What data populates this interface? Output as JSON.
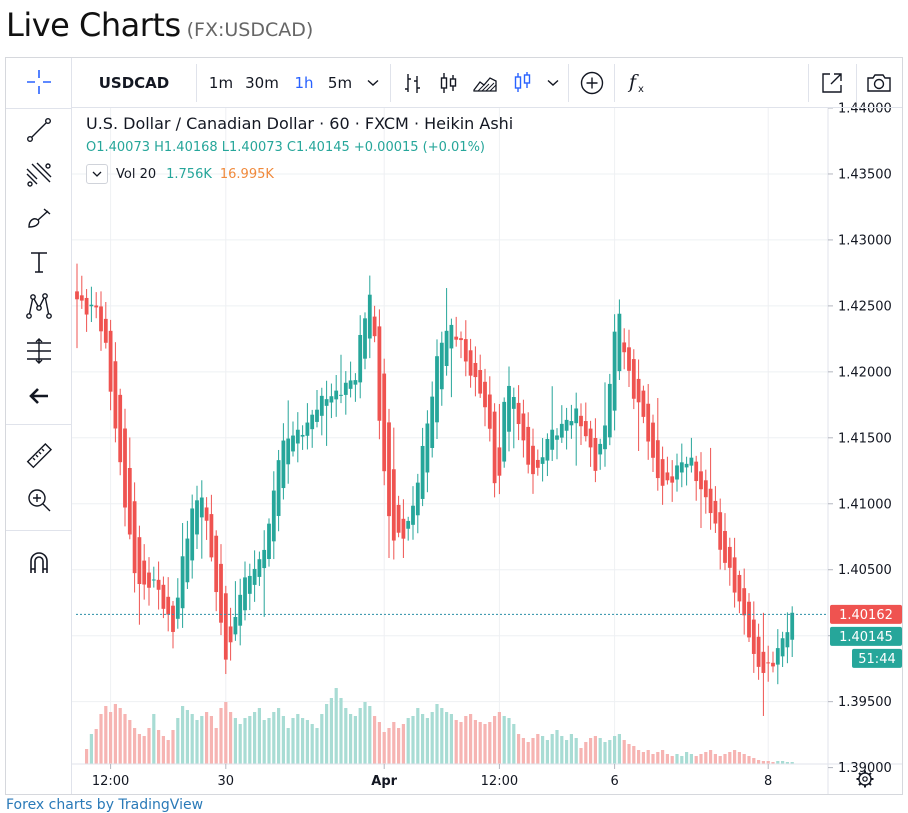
{
  "page": {
    "title": "Live Charts",
    "symbol_tag": "(FX:USDCAD)",
    "credit": "Forex charts by TradingView"
  },
  "toolbar": {
    "symbol": "USDCAD",
    "intervals": [
      "1m",
      "30m",
      "1h",
      "5m"
    ],
    "active_interval": "1h",
    "icons": [
      "interval-dropdown-icon",
      "bars-style-icon",
      "candles-style-icon",
      "area-style-icon",
      "heikin-ashi-style-icon",
      "chart-style-dropdown-icon",
      "compare-add-icon",
      "indicators-fx-icon",
      "fullscreen-icon",
      "snapshot-camera-icon"
    ]
  },
  "sidebar": {
    "tools": [
      "crosshair-icon",
      "trend-line-icon",
      "fib-retracement-icon",
      "brush-icon",
      "text-icon",
      "pattern-icon",
      "prediction-measure-icon",
      "back-arrow-icon",
      "ruler-icon",
      "zoom-in-icon",
      "magnet-icon"
    ]
  },
  "legend": {
    "title": "U.S. Dollar / Canadian Dollar · 60 · FXCM · Heikin Ashi",
    "ohlc_text": "O1.40073  H1.40168  L1.40073  C1.40145  +0.00015 (+0.01%)",
    "vol_label": "Vol 20",
    "vol_value": "1.756K",
    "vol_ma": "16.995K"
  },
  "colors": {
    "up": "#26a69a",
    "down": "#ef5350",
    "vol_up": "#a8dcd4",
    "vol_down": "#f6b4b2",
    "grid": "#eef0f3",
    "price_line": "#2a8fa6",
    "accent": "#2962ff",
    "ma_text": "#f08a3c"
  },
  "chart_data": {
    "type": "candlestick",
    "style": "Heikin Ashi",
    "interval": "60",
    "ylim": [
      1.388,
      1.44
    ],
    "y_ticks": [
      "1.44000",
      "1.43500",
      "1.43000",
      "1.42500",
      "1.42000",
      "1.41500",
      "1.41000",
      "1.40500",
      "1.40000",
      "1.39500",
      "1.39000"
    ],
    "x_ticks": [
      {
        "label": "12:00",
        "index": 7
      },
      {
        "label": "30",
        "index": 31
      },
      {
        "label": "Apr",
        "index": 64
      },
      {
        "label": "12:00",
        "index": 88
      },
      {
        "label": "6",
        "index": 112
      },
      {
        "label": "8",
        "index": 144
      }
    ],
    "grid": true,
    "price_markers": [
      {
        "label": "1.40162",
        "value": 1.40162,
        "color": "#ef5350"
      },
      {
        "label": "1.40145",
        "value": 1.40145,
        "color": "#26a69a"
      },
      {
        "label": "51:44",
        "color": "#26a69a"
      }
    ],
    "close_keyframes": [
      [
        0,
        1.4255
      ],
      [
        2,
        1.4245
      ],
      [
        4,
        1.425
      ],
      [
        6,
        1.422
      ],
      [
        8,
        1.4155
      ],
      [
        10,
        1.41
      ],
      [
        12,
        1.405
      ],
      [
        14,
        1.4035
      ],
      [
        16,
        1.404
      ],
      [
        18,
        1.4025
      ],
      [
        20,
        1.4005
      ],
      [
        22,
        1.4055
      ],
      [
        24,
        1.4095
      ],
      [
        26,
        1.411
      ],
      [
        28,
        1.406
      ],
      [
        30,
        1.4005
      ],
      [
        31,
        1.3985
      ],
      [
        32,
        1.3995
      ],
      [
        34,
        1.4035
      ],
      [
        36,
        1.4045
      ],
      [
        38,
        1.4055
      ],
      [
        40,
        1.4085
      ],
      [
        42,
        1.4135
      ],
      [
        44,
        1.415
      ],
      [
        46,
        1.4155
      ],
      [
        48,
        1.416
      ],
      [
        50,
        1.4172
      ],
      [
        52,
        1.4182
      ],
      [
        54,
        1.4185
      ],
      [
        56,
        1.4188
      ],
      [
        58,
        1.4195
      ],
      [
        59,
        1.4225
      ],
      [
        60,
        1.4245
      ],
      [
        61,
        1.426
      ],
      [
        62,
        1.4225
      ],
      [
        63,
        1.4165
      ],
      [
        64,
        1.412
      ],
      [
        65,
        1.409
      ],
      [
        66,
        1.4075
      ],
      [
        68,
        1.4078
      ],
      [
        70,
        1.4095
      ],
      [
        72,
        1.414
      ],
      [
        74,
        1.4185
      ],
      [
        75,
        1.421
      ],
      [
        76,
        1.4225
      ],
      [
        78,
        1.4232
      ],
      [
        80,
        1.4222
      ],
      [
        82,
        1.42
      ],
      [
        84,
        1.4185
      ],
      [
        86,
        1.4155
      ],
      [
        87,
        1.412
      ],
      [
        88,
        1.412
      ],
      [
        89,
        1.418
      ],
      [
        90,
        1.419
      ],
      [
        92,
        1.4162
      ],
      [
        94,
        1.413
      ],
      [
        96,
        1.4125
      ],
      [
        98,
        1.4148
      ],
      [
        100,
        1.4155
      ],
      [
        102,
        1.4165
      ],
      [
        104,
        1.4168
      ],
      [
        106,
        1.415
      ],
      [
        108,
        1.413
      ],
      [
        110,
        1.416
      ],
      [
        112,
        1.4225
      ],
      [
        113,
        1.4245
      ],
      [
        114,
        1.4215
      ],
      [
        116,
        1.4185
      ],
      [
        118,
        1.4165
      ],
      [
        120,
        1.413
      ],
      [
        122,
        1.4115
      ],
      [
        124,
        1.412
      ],
      [
        126,
        1.413
      ],
      [
        128,
        1.4132
      ],
      [
        130,
        1.4112
      ],
      [
        132,
        1.4095
      ],
      [
        134,
        1.4065
      ],
      [
        136,
        1.405
      ],
      [
        138,
        1.4025
      ],
      [
        140,
        1.4
      ],
      [
        141,
        1.3982
      ],
      [
        143,
        1.3975
      ],
      [
        145,
        1.398
      ],
      [
        147,
        1.3995
      ],
      [
        149,
        1.4015
      ]
    ],
    "volume_up": [
      0,
      0,
      20,
      30,
      40,
      55,
      60,
      58,
      66,
      62,
      54,
      48,
      40,
      34,
      30,
      40,
      50,
      38,
      30,
      26,
      38,
      46,
      58,
      54,
      50,
      44,
      48,
      56,
      52,
      40,
      60,
      66,
      56,
      46,
      40,
      46,
      48,
      52,
      56,
      44,
      46,
      52,
      56,
      48,
      36,
      46,
      50,
      46,
      44,
      40,
      36,
      50,
      60,
      66,
      76,
      66,
      56,
      50,
      48,
      56,
      62,
      58,
      52,
      46,
      36,
      40,
      46,
      40,
      44,
      46,
      48,
      56,
      50,
      46,
      52,
      60,
      56,
      52,
      50,
      48,
      46,
      52,
      54,
      48,
      46,
      44,
      46,
      52,
      56,
      48,
      46,
      40,
      34,
      30,
      26,
      30,
      34,
      28,
      24,
      30,
      34,
      28,
      24,
      30,
      26,
      20,
      26,
      30,
      32,
      26,
      22,
      24,
      28,
      30,
      28,
      24,
      22,
      18,
      16,
      18,
      14,
      16,
      18,
      14,
      12,
      10,
      8,
      12,
      10,
      12,
      14,
      16,
      18,
      14,
      12,
      14,
      16,
      18,
      16,
      14,
      12,
      10,
      8,
      6,
      5,
      4,
      3,
      3,
      2,
      2
    ],
    "volume_down": [
      0,
      0,
      15,
      24,
      35,
      50,
      58,
      52,
      60,
      56,
      50,
      44,
      36,
      30,
      28,
      36,
      46,
      34,
      28,
      24,
      34,
      42,
      54,
      50,
      46,
      40,
      44,
      52,
      48,
      36,
      56,
      62,
      52,
      42,
      36,
      42,
      44,
      48,
      52,
      40,
      42,
      48,
      52,
      44,
      32,
      42,
      46,
      42,
      40,
      36,
      32,
      46,
      56,
      62,
      72,
      62,
      52,
      46,
      44,
      52,
      58,
      54,
      48,
      42,
      32,
      36,
      42,
      36,
      40,
      42,
      44,
      52,
      46,
      42,
      48,
      56,
      52,
      48,
      46,
      44,
      42,
      48,
      50,
      44,
      42,
      40,
      42,
      48,
      52,
      44,
      42,
      36,
      30,
      26,
      22,
      26,
      30,
      24,
      20,
      26,
      30,
      24,
      20,
      26,
      22,
      16,
      22,
      26,
      28,
      22,
      18,
      20,
      24,
      26,
      24,
      20,
      18,
      14,
      12,
      14,
      10,
      12,
      14,
      10,
      8,
      6,
      4,
      8,
      6,
      8,
      10,
      12,
      14,
      10,
      8,
      10,
      12,
      14,
      12,
      10,
      8,
      6,
      4,
      3,
      3,
      2,
      2,
      2,
      1,
      1
    ],
    "volume_scale_max": 80
  }
}
